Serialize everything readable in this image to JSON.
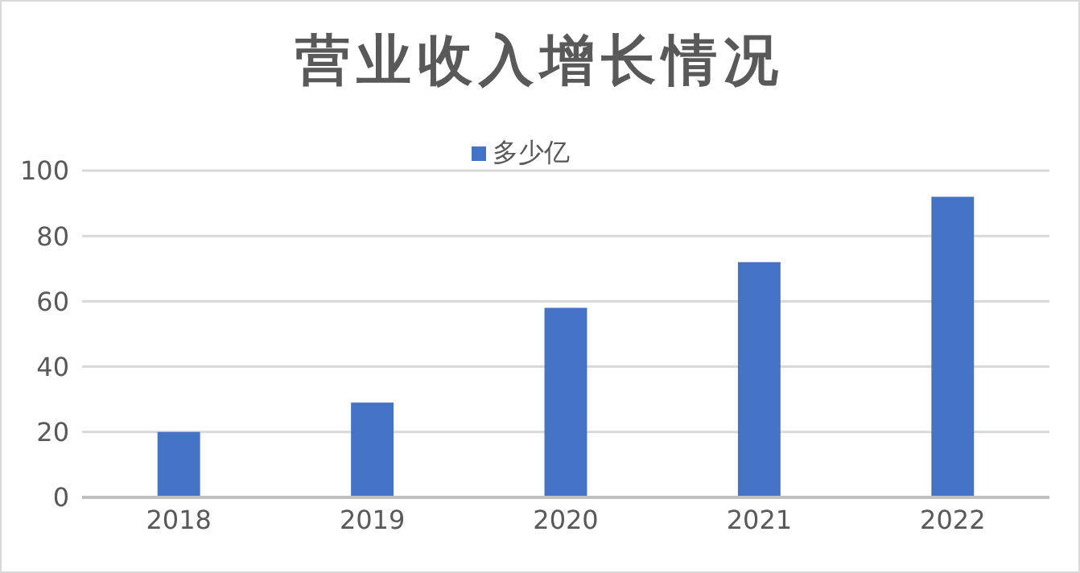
{
  "chart_data": {
    "type": "bar",
    "title": "营业收入增长情况",
    "categories": [
      "2018",
      "2019",
      "2020",
      "2021",
      "2022"
    ],
    "series": [
      {
        "name": "多少亿",
        "color": "#4472c4",
        "values": [
          20,
          29,
          58,
          72,
          92
        ]
      }
    ],
    "ylim": [
      0,
      100
    ],
    "yticks": [
      0,
      20,
      40,
      60,
      80,
      100
    ],
    "grid": "y",
    "legend": "top"
  }
}
